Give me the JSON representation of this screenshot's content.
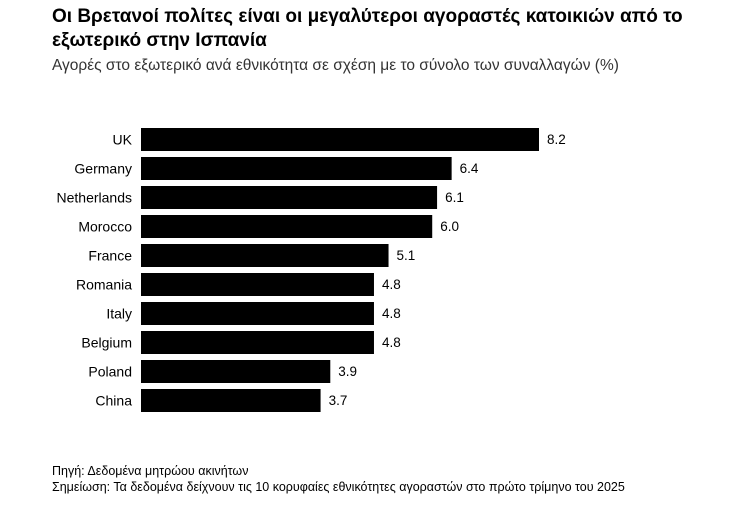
{
  "chart_data": {
    "type": "bar",
    "orientation": "horizontal",
    "title": "Οι Βρετανοί πολίτες είναι οι μεγαλύτεροι αγοραστές κατοικιών από το εξωτερικό στην Ισπανία",
    "subtitle": "Αγορές στο εξωτερικό ανά εθνικότητα σε σχέση με το σύνολο των συναλλαγών (%)",
    "categories": [
      "UK",
      "Germany",
      "Netherlands",
      "Morocco",
      "France",
      "Romania",
      "Italy",
      "Belgium",
      "Poland",
      "China"
    ],
    "values": [
      8.2,
      6.4,
      6.1,
      6.0,
      5.1,
      4.8,
      4.8,
      4.8,
      3.9,
      3.7
    ],
    "value_labels": [
      "8.2",
      "6.4",
      "6.1",
      "6.0",
      "5.1",
      "4.8",
      "4.8",
      "4.8",
      "3.9",
      "3.7"
    ],
    "xlim": [
      0,
      8.2
    ],
    "bar_color": "#000000",
    "grid": false,
    "legend": "none"
  },
  "footer": {
    "source": "Πηγή: Δεδομένα μητρώου ακινήτων",
    "note": "Σημείωση: Τα δεδομένα δείχνουν τις 10 κορυφαίες εθνικότητες αγοραστών στο πρώτο τρίμηνο του 2025"
  }
}
